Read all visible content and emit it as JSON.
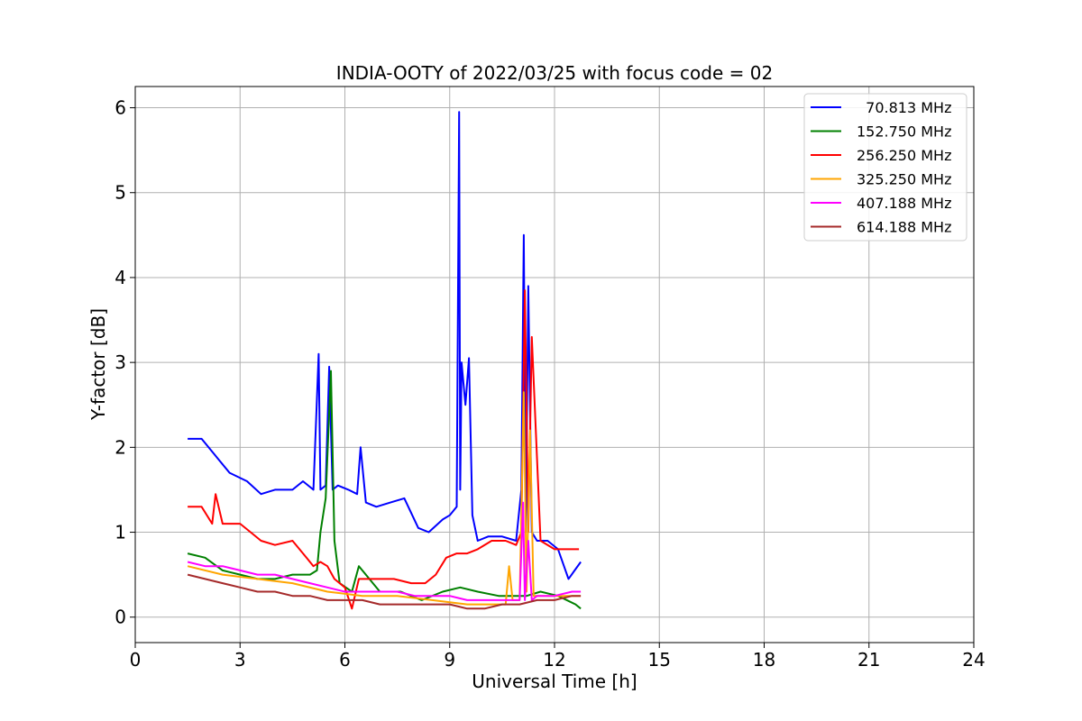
{
  "chart_data": {
    "type": "line",
    "title": "INDIA-OOTY of 2022/03/25 with focus code = 02",
    "xlabel": "Universal Time [h]",
    "ylabel": "Y-factor [dB]",
    "xlim": [
      0,
      24
    ],
    "ylim": [
      -0.3,
      6.25
    ],
    "xticks": [
      0,
      3,
      6,
      9,
      12,
      15,
      18,
      21,
      24
    ],
    "yticks": [
      0,
      1,
      2,
      3,
      4,
      5,
      6
    ],
    "grid": true,
    "legend_position": "top-right",
    "series": [
      {
        "name": "  70.813 MHz",
        "color": "#0000ff",
        "x": [
          1.5,
          1.9,
          2.3,
          2.7,
          3.2,
          3.6,
          4.0,
          4.5,
          4.8,
          5.1,
          5.25,
          5.3,
          5.45,
          5.55,
          5.65,
          5.8,
          6.1,
          6.35,
          6.45,
          6.6,
          6.9,
          7.3,
          7.7,
          8.1,
          8.4,
          8.8,
          9.0,
          9.2,
          9.27,
          9.3,
          9.34,
          9.45,
          9.55,
          9.65,
          9.8,
          10.1,
          10.5,
          10.9,
          11.05,
          11.12,
          11.18,
          11.25,
          11.35,
          11.5,
          11.8,
          12.1,
          12.4,
          12.75
        ],
        "y": [
          2.1,
          2.1,
          1.9,
          1.7,
          1.6,
          1.45,
          1.5,
          1.5,
          1.6,
          1.5,
          3.1,
          1.5,
          1.55,
          2.95,
          1.5,
          1.55,
          1.5,
          1.45,
          2.0,
          1.35,
          1.3,
          1.35,
          1.4,
          1.05,
          1.0,
          1.15,
          1.2,
          1.3,
          5.95,
          1.5,
          3.0,
          2.5,
          3.05,
          1.2,
          0.9,
          0.95,
          0.95,
          0.9,
          1.5,
          4.5,
          1.0,
          3.9,
          1.0,
          0.9,
          0.9,
          0.8,
          0.45,
          0.65
        ]
      },
      {
        "name": "152.750 MHz",
        "color": "#008000",
        "x": [
          1.5,
          2.0,
          2.5,
          3.0,
          3.5,
          4.0,
          4.5,
          5.0,
          5.2,
          5.3,
          5.45,
          5.6,
          5.7,
          5.85,
          6.2,
          6.4,
          7.0,
          7.6,
          8.2,
          8.8,
          9.3,
          9.8,
          10.4,
          10.9,
          11.2,
          11.6,
          12.1,
          12.6,
          12.75
        ],
        "y": [
          0.75,
          0.7,
          0.55,
          0.5,
          0.45,
          0.45,
          0.5,
          0.5,
          0.55,
          1.0,
          1.4,
          2.9,
          0.9,
          0.4,
          0.3,
          0.6,
          0.3,
          0.3,
          0.2,
          0.3,
          0.35,
          0.3,
          0.25,
          0.25,
          0.25,
          0.3,
          0.25,
          0.15,
          0.1
        ]
      },
      {
        "name": "256.250 MHz",
        "color": "#ff0000",
        "x": [
          1.5,
          1.9,
          2.2,
          2.3,
          2.5,
          3.0,
          3.3,
          3.6,
          4.0,
          4.5,
          4.9,
          5.1,
          5.3,
          5.5,
          5.7,
          6.0,
          6.2,
          6.4,
          6.9,
          7.4,
          7.9,
          8.3,
          8.6,
          8.9,
          9.2,
          9.5,
          9.8,
          10.2,
          10.6,
          10.9,
          11.05,
          11.15,
          11.25,
          11.35,
          11.6,
          12.0,
          12.4,
          12.7
        ],
        "y": [
          1.3,
          1.3,
          1.1,
          1.45,
          1.1,
          1.1,
          1.0,
          0.9,
          0.85,
          0.9,
          0.7,
          0.6,
          0.65,
          0.6,
          0.45,
          0.35,
          0.1,
          0.45,
          0.45,
          0.45,
          0.4,
          0.4,
          0.5,
          0.7,
          0.75,
          0.75,
          0.8,
          0.9,
          0.9,
          0.85,
          1.0,
          3.85,
          1.0,
          3.3,
          0.9,
          0.8,
          0.8,
          0.8
        ]
      },
      {
        "name": "325.250 MHz",
        "color": "#ffa500",
        "x": [
          1.5,
          2.5,
          3.5,
          4.5,
          5.5,
          6.5,
          7.5,
          8.5,
          9.5,
          10.2,
          10.6,
          10.7,
          10.8,
          11.0,
          11.12,
          11.2,
          11.3,
          11.4,
          11.7,
          12.2,
          12.75
        ],
        "y": [
          0.6,
          0.5,
          0.45,
          0.4,
          0.3,
          0.25,
          0.25,
          0.2,
          0.15,
          0.15,
          0.15,
          0.6,
          0.2,
          0.2,
          2.65,
          0.3,
          2.2,
          0.25,
          0.25,
          0.25,
          0.25
        ]
      },
      {
        "name": "407.188 MHz",
        "color": "#ff00ff",
        "x": [
          1.5,
          2.0,
          2.5,
          3.0,
          3.5,
          4.0,
          4.5,
          5.0,
          5.5,
          6.0,
          6.5,
          7.0,
          7.5,
          8.0,
          8.5,
          9.0,
          9.5,
          10.0,
          10.5,
          11.0,
          11.1,
          11.15,
          11.25,
          11.35,
          11.5,
          12.0,
          12.5,
          12.75
        ],
        "y": [
          0.65,
          0.6,
          0.6,
          0.55,
          0.5,
          0.5,
          0.45,
          0.4,
          0.35,
          0.3,
          0.3,
          0.3,
          0.3,
          0.25,
          0.25,
          0.25,
          0.2,
          0.2,
          0.2,
          0.2,
          1.35,
          0.2,
          0.9,
          0.2,
          0.25,
          0.25,
          0.3,
          0.3
        ]
      },
      {
        "name": "614.188 MHz",
        "color": "#a52a2a",
        "x": [
          1.5,
          2.0,
          2.5,
          3.0,
          3.5,
          4.0,
          4.5,
          5.0,
          5.5,
          6.0,
          6.5,
          7.0,
          7.5,
          8.0,
          8.5,
          9.0,
          9.5,
          10.0,
          10.5,
          11.0,
          11.5,
          12.0,
          12.5,
          12.75
        ],
        "y": [
          0.5,
          0.45,
          0.4,
          0.35,
          0.3,
          0.3,
          0.25,
          0.25,
          0.2,
          0.2,
          0.2,
          0.15,
          0.15,
          0.15,
          0.15,
          0.15,
          0.1,
          0.1,
          0.15,
          0.15,
          0.2,
          0.2,
          0.25,
          0.25
        ]
      }
    ]
  }
}
